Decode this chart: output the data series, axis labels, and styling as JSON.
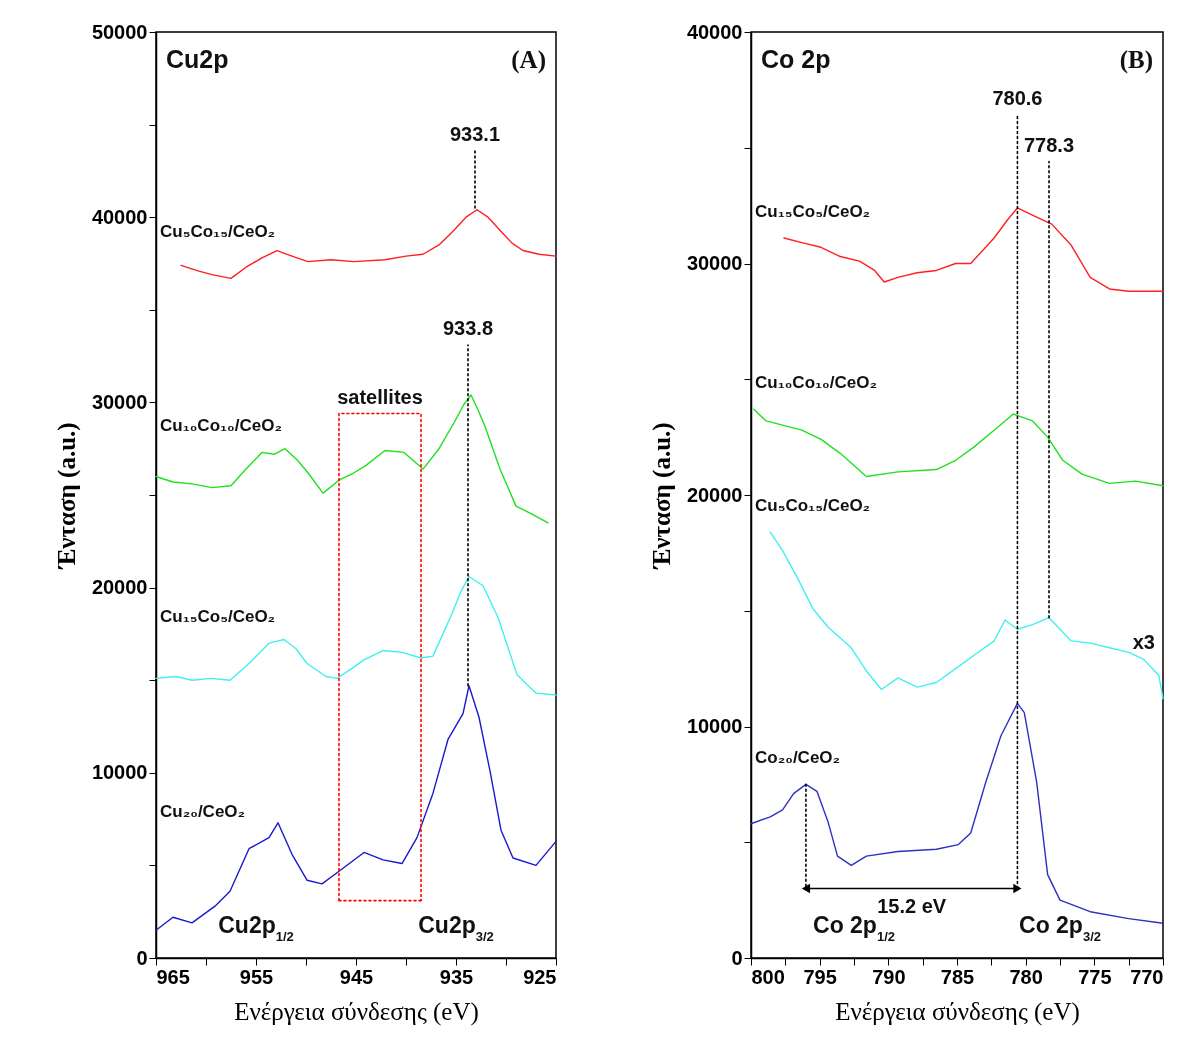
{
  "chart_data": [
    {
      "type": "line",
      "xlabel": "Ενέργεια σύνδεσης (eV)",
      "ylabel": "Ένταση (a.u.)",
      "xlim": [
        965,
        925
      ],
      "ylim": [
        0,
        50000
      ],
      "xticks": [
        965,
        {
          "value": 960,
          "label": null
        },
        955,
        {
          "value": 950,
          "label": null
        },
        945,
        {
          "value": 940,
          "label": null
        },
        935,
        {
          "value": 930,
          "label": null
        },
        925
      ],
      "yticks": [
        0,
        {
          "value": 5000,
          "label": null
        },
        10000,
        {
          "value": 15000,
          "label": null
        },
        20000,
        {
          "value": 25000,
          "label": null
        },
        30000,
        {
          "value": 35000,
          "label": null
        },
        40000,
        {
          "value": 45000,
          "label": null
        },
        50000
      ],
      "series": [
        {
          "name": "Cu₅Co₁₅/CeO₂",
          "color": "#ff2020",
          "x": [
            962.5,
            960.8,
            959.4,
            957.5,
            956.0,
            954.4,
            952.9,
            951.4,
            949.8,
            947.5,
            945.2,
            942.1,
            940.0,
            938.3,
            936.7,
            935.2,
            934.0,
            932.9,
            931.8,
            930.6,
            929.4,
            928.3,
            926.7,
            925
          ],
          "values": [
            37400,
            37100,
            36900,
            36700,
            37300,
            37800,
            38200,
            37900,
            37600,
            37700,
            37600,
            37700,
            37900,
            38000,
            38500,
            39300,
            40000,
            40400,
            40000,
            39300,
            38600,
            38200,
            38000,
            37900
          ]
        },
        {
          "name": "Cu₁₀Co₁₀/CeO₂",
          "color": "#20e020",
          "x": [
            965,
            963.3,
            961.4,
            959.4,
            957.5,
            956.0,
            954.4,
            953.2,
            952.1,
            950.9,
            949.8,
            948.3,
            946.7,
            945.2,
            944.0,
            942.1,
            940.2,
            938.3,
            936.7,
            935.2,
            934.2,
            933.5,
            932.8,
            932.1,
            930.6,
            929.0,
            927.5,
            925.8
          ],
          "values": [
            26000,
            25700,
            25600,
            25400,
            25500,
            26400,
            27300,
            27200,
            27500,
            26900,
            26200,
            25100,
            25800,
            26200,
            26600,
            27400,
            27300,
            26400,
            27500,
            28900,
            29900,
            30400,
            29600,
            28700,
            26400,
            24400,
            24000,
            23500
          ]
        },
        {
          "name": "Cu₁₅Co₅/CeO₂",
          "color": "#40f0f0",
          "x": [
            965,
            963.0,
            961.4,
            959.5,
            957.6,
            955.7,
            953.7,
            952.2,
            951.0,
            949.9,
            948.0,
            946.9,
            945.5,
            944.2,
            942.3,
            940.4,
            938.5,
            937.3,
            935.4,
            934.5,
            933.7,
            932.3,
            930.8,
            928.9,
            927.0,
            925
          ],
          "values": [
            15100,
            15200,
            15000,
            15100,
            15000,
            15900,
            17000,
            17200,
            16700,
            15900,
            15200,
            15100,
            15600,
            16100,
            16600,
            16500,
            16200,
            16300,
            18600,
            19800,
            20600,
            20100,
            18400,
            15300,
            14300,
            14200
          ]
        },
        {
          "name": "Cu₂₀/CeO₂",
          "color": "#1a1acc",
          "x": [
            965,
            963.3,
            961.4,
            959.1,
            957.6,
            955.7,
            953.7,
            952.8,
            951.4,
            949.9,
            948.4,
            946.9,
            944.2,
            942.3,
            940.4,
            938.9,
            937.3,
            935.8,
            934.3,
            933.7,
            932.7,
            931.6,
            930.5,
            929.3,
            927.0,
            925
          ],
          "values": [
            1500,
            2200,
            1900,
            2800,
            3600,
            5900,
            6500,
            7300,
            5600,
            4200,
            4000,
            4600,
            5700,
            5300,
            5100,
            6500,
            8900,
            11800,
            13200,
            14700,
            13000,
            10100,
            6900,
            5400,
            5000,
            6300
          ]
        },
        {
          "color": "#000000",
          "line_style": "dotted",
          "x": [
            933.1,
            933.1
          ],
          "values": [
            40500,
            43600
          ]
        },
        {
          "color": "#000000",
          "line_style": "dotted",
          "x": [
            933.8,
            933.8
          ],
          "values": [
            14700,
            33100
          ]
        },
        {
          "color": "#ff0000",
          "line_style": "dotted",
          "x": [
            946.7,
            946.7,
            938.5,
            938.5
          ],
          "values": [
            3100,
            29400,
            29400,
            3100
          ]
        },
        {
          "color": "#ff0000",
          "line_style": "dotted",
          "x": [
            946.7,
            938.5
          ],
          "values": [
            3100,
            3100
          ]
        }
      ],
      "annotations": [
        "Cu2p",
        "(A)",
        {
          "text": "933.1",
          "x": 933.1,
          "y": 43600
        },
        {
          "text": "933.8",
          "x": 933.8,
          "y": 33100
        },
        {
          "text": "satellites",
          "x": 942.6,
          "y": 29400
        },
        "Cu2p$_{1/2}$",
        "Cu2p$_{3/2}$"
      ]
    },
    {
      "type": "line",
      "xlabel": "Ενέργεια σύνδεσης (eV)",
      "ylabel": "Ένταση (a.u.)",
      "xlim": [
        800,
        770
      ],
      "ylim": [
        0,
        40000
      ],
      "xticks": [
        800,
        {
          "value": 797.5,
          "label": null
        },
        795,
        {
          "value": 792.5,
          "label": null
        },
        790,
        {
          "value": 787.5,
          "label": null
        },
        785,
        {
          "value": 782.5,
          "label": null
        },
        780,
        {
          "value": 777.5,
          "label": null
        },
        775,
        {
          "value": 772.5,
          "label": null
        },
        770
      ],
      "yticks": [
        0,
        {
          "value": 5000,
          "label": null
        },
        10000,
        {
          "value": 15000,
          "label": null
        },
        20000,
        {
          "value": 25000,
          "label": null
        },
        30000,
        {
          "value": 35000,
          "label": null
        },
        40000
      ],
      "series": [
        {
          "name": "Cu₁₅Co₅/CeO₂",
          "color": "#ff2020",
          "x": [
            797.6,
            796.3,
            794.9,
            793.5,
            792.1,
            791.0,
            790.3,
            789.3,
            787.9,
            786.5,
            785.1,
            784.0,
            782.3,
            781.3,
            780.6,
            779.2,
            778.1,
            776.7,
            775.3,
            773.9,
            772.5,
            770
          ],
          "values": [
            31100,
            30900,
            30700,
            30300,
            30100,
            29700,
            29200,
            29400,
            29600,
            29700,
            30000,
            30000,
            31100,
            31900,
            32400,
            32000,
            31700,
            30800,
            29400,
            28900,
            28800,
            28800
          ]
        },
        {
          "name": "Cu₁₀Co₁₀/CeO₂",
          "color": "#20e020",
          "x": [
            799.8,
            798.9,
            796.3,
            794.9,
            793.5,
            791.6,
            789.3,
            786.5,
            785.1,
            783.7,
            782.3,
            780.9,
            779.5,
            778.4,
            777.3,
            775.9,
            773.9,
            772.0,
            770
          ],
          "values": [
            23700,
            23200,
            22800,
            22400,
            21800,
            20800,
            21000,
            21100,
            21500,
            22100,
            22800,
            23500,
            23200,
            22500,
            21500,
            20900,
            20500,
            20600,
            20400
          ]
        },
        {
          "name": "Cu₅Co₁₅/CeO₂",
          "color": "#40f0f0",
          "x": [
            798.6,
            797.7,
            796.6,
            795.5,
            794.4,
            792.7,
            791.6,
            790.5,
            789.3,
            787.9,
            786.5,
            785.1,
            783.7,
            782.3,
            781.5,
            780.6,
            779.5,
            778.3,
            776.7,
            775.3,
            773.9,
            772.5,
            771.4,
            770.3,
            770
          ],
          "values": [
            18400,
            17600,
            16400,
            15100,
            14300,
            13400,
            12400,
            11600,
            12100,
            11700,
            11900,
            12500,
            13100,
            13700,
            14600,
            14200,
            14400,
            14700,
            13700,
            13600,
            13400,
            13200,
            12900,
            12200,
            11200
          ]
        },
        {
          "name": "Co₂₀/CeO₂",
          "color": "#3030c0",
          "x": [
            800,
            798.6,
            797.7,
            796.9,
            796.0,
            795.2,
            794.4,
            793.7,
            792.7,
            791.6,
            789.3,
            786.5,
            784.9,
            784.0,
            782.9,
            781.8,
            780.6,
            780.1,
            779.2,
            778.4,
            777.5,
            775.3,
            772.5,
            770
          ],
          "values": [
            5800,
            6100,
            6400,
            7100,
            7500,
            7200,
            5900,
            4400,
            4000,
            4400,
            4600,
            4700,
            4900,
            5400,
            7600,
            9600,
            11000,
            10600,
            7600,
            3600,
            2500,
            2000,
            1700,
            1500
          ]
        },
        {
          "color": "#000000",
          "line_style": "dotted",
          "x": [
            780.6,
            780.6
          ],
          "values": [
            3000,
            36400
          ]
        },
        {
          "color": "#000000",
          "line_style": "dotted",
          "x": [
            778.3,
            778.3
          ],
          "values": [
            14700,
            34400
          ]
        },
        {
          "color": "#000000",
          "line_style": "dotted",
          "x": [
            796.0,
            796.0
          ],
          "values": [
            3100,
            7500
          ]
        },
        {
          "color": "#000000",
          "marker": "triangle",
          "x": [
            796.0,
            780.6
          ],
          "values": [
            3000,
            3000
          ]
        }
      ],
      "annotations": [
        "Co 2p",
        "(B)",
        {
          "text": "780.6",
          "x": 780.6,
          "y": 36400
        },
        {
          "text": "778.3",
          "x": 778.3,
          "y": 34400
        },
        {
          "text": "15.2 eV",
          "x": 788.3,
          "y": 3000
        },
        {
          "text": "x3",
          "x": 771.4,
          "y": 12900
        },
        "Co 2p$_{1/2}$",
        "Co 2p$_{3/2}$"
      ]
    }
  ]
}
